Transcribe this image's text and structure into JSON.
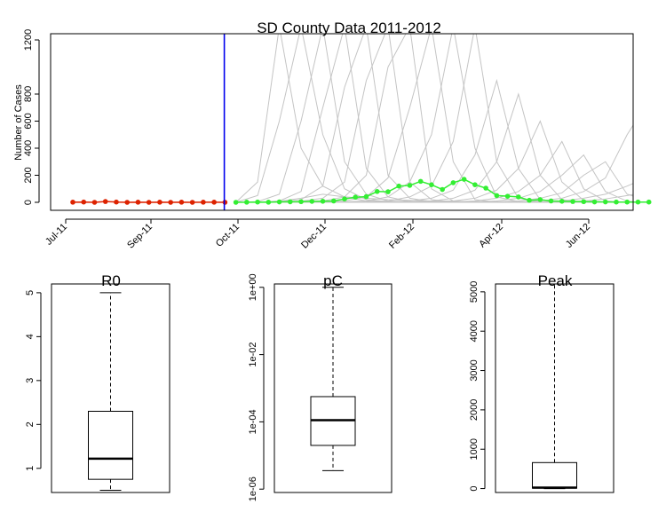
{
  "chart_data": [
    {
      "type": "line",
      "title": "SD County Data 2011-2012",
      "xlabel": "",
      "ylabel": "Number of Cases",
      "ylim": [
        -40,
        1240
      ],
      "y_ticks": [
        "0",
        "200",
        "400",
        "600",
        "800",
        "1200"
      ],
      "x_ticks": [
        "Jul-11",
        "Sep-11",
        "Oct-11",
        "Dec-11",
        "Feb-12",
        "Apr-12",
        "Jun-12"
      ],
      "vertical_line_at_week": 15,
      "colors": {
        "observed_fit": "#dd2200",
        "observed_forecast": "#33ee33",
        "simulations": "#c4c4c4",
        "cutoff_line": "#0000ee"
      },
      "series": [
        {
          "role": "observed-before-cutoff",
          "points_week": [
            0,
            1,
            2,
            3,
            4,
            5,
            6,
            7,
            8,
            9,
            10,
            11,
            12,
            13,
            14
          ],
          "values": [
            1,
            2,
            0,
            6,
            2,
            0,
            1,
            0,
            1,
            0,
            1,
            0,
            1,
            1,
            0
          ]
        },
        {
          "role": "observed-after-cutoff",
          "points_week": [
            15,
            16,
            17,
            18,
            19,
            20,
            21,
            22,
            23,
            24,
            25,
            26,
            27,
            28,
            29,
            30,
            31,
            32,
            33,
            34,
            35,
            36,
            37,
            38,
            39,
            40,
            41,
            42,
            43,
            44,
            45,
            46,
            47,
            48,
            49,
            50,
            51,
            52,
            53
          ],
          "values": [
            0,
            1,
            2,
            1,
            3,
            4,
            5,
            7,
            8,
            10,
            25,
            38,
            42,
            80,
            78,
            120,
            125,
            155,
            130,
            95,
            145,
            170,
            130,
            105,
            50,
            45,
            40,
            15,
            20,
            10,
            8,
            6,
            5,
            3,
            3,
            2,
            2,
            2,
            2
          ]
        }
      ],
      "simulations_week": [
        15,
        17,
        19,
        21,
        23,
        25,
        27,
        29,
        31,
        33,
        35,
        37,
        39,
        41,
        43,
        45,
        47,
        49,
        51,
        53
      ],
      "simulations": [
        [
          0,
          150,
          1300,
          400,
          120,
          40,
          10,
          5,
          2,
          1,
          0,
          0,
          0,
          0,
          0,
          0,
          0,
          0,
          0,
          0
        ],
        [
          0,
          50,
          600,
          1300,
          500,
          100,
          20,
          5,
          1,
          0,
          0,
          0,
          0,
          0,
          0,
          0,
          0,
          0,
          0,
          0
        ],
        [
          0,
          5,
          60,
          600,
          1300,
          300,
          60,
          10,
          2,
          0,
          0,
          0,
          0,
          0,
          0,
          0,
          0,
          0,
          0,
          0
        ],
        [
          0,
          2,
          10,
          80,
          700,
          1300,
          250,
          40,
          5,
          1,
          0,
          0,
          0,
          0,
          0,
          0,
          0,
          0,
          0,
          0
        ],
        [
          0,
          1,
          5,
          20,
          120,
          850,
          1300,
          200,
          30,
          5,
          1,
          0,
          0,
          0,
          0,
          0,
          0,
          0,
          0,
          0
        ],
        [
          0,
          1,
          2,
          8,
          30,
          150,
          900,
          1300,
          150,
          20,
          2,
          0,
          0,
          0,
          0,
          0,
          0,
          0,
          0,
          0
        ],
        [
          0,
          0,
          1,
          3,
          10,
          40,
          200,
          1000,
          1300,
          100,
          10,
          1,
          0,
          0,
          0,
          0,
          0,
          0,
          0,
          0
        ],
        [
          0,
          0,
          0,
          1,
          3,
          10,
          40,
          180,
          700,
          1300,
          300,
          20,
          2,
          0,
          0,
          0,
          0,
          0,
          0,
          0
        ],
        [
          0,
          0,
          0,
          0,
          1,
          3,
          10,
          40,
          150,
          500,
          1300,
          400,
          40,
          5,
          0,
          0,
          0,
          0,
          0,
          0
        ],
        [
          0,
          0,
          0,
          0,
          0,
          1,
          3,
          10,
          40,
          120,
          450,
          1300,
          300,
          30,
          3,
          0,
          0,
          0,
          0,
          0
        ],
        [
          0,
          0,
          0,
          0,
          0,
          0,
          1,
          3,
          10,
          30,
          90,
          350,
          900,
          250,
          20,
          2,
          0,
          0,
          0,
          0
        ],
        [
          0,
          0,
          0,
          0,
          0,
          0,
          0,
          1,
          3,
          10,
          30,
          90,
          300,
          800,
          200,
          20,
          2,
          0,
          0,
          0
        ],
        [
          0,
          0,
          0,
          0,
          0,
          0,
          0,
          0,
          1,
          3,
          10,
          30,
          90,
          250,
          600,
          150,
          15,
          1,
          0,
          0
        ],
        [
          0,
          0,
          0,
          0,
          0,
          0,
          0,
          0,
          0,
          1,
          3,
          10,
          30,
          80,
          200,
          450,
          100,
          10,
          0,
          0
        ],
        [
          0,
          0,
          0,
          0,
          0,
          0,
          0,
          0,
          0,
          0,
          1,
          3,
          10,
          30,
          80,
          200,
          350,
          80,
          8,
          0
        ],
        [
          0,
          0,
          0,
          0,
          0,
          0,
          0,
          0,
          0,
          0,
          0,
          1,
          3,
          10,
          30,
          70,
          200,
          300,
          60,
          10
        ],
        [
          0,
          0,
          0,
          0,
          0,
          0,
          0,
          0,
          0,
          0,
          0,
          0,
          1,
          3,
          10,
          30,
          80,
          180,
          500,
          750
        ],
        [
          0,
          0,
          0,
          0,
          0,
          0,
          0,
          0,
          0,
          0,
          0,
          0,
          0,
          1,
          3,
          10,
          30,
          60,
          120,
          190
        ],
        [
          0,
          0,
          0,
          0,
          0,
          0,
          0,
          0,
          0,
          0,
          0,
          0,
          0,
          0,
          1,
          3,
          10,
          25,
          50,
          80
        ],
        [
          0,
          2,
          8,
          30,
          60,
          40,
          30,
          20,
          15,
          10,
          8,
          5,
          3,
          2,
          1,
          1,
          0,
          0,
          0,
          0
        ]
      ]
    },
    {
      "type": "boxplot",
      "title": "R0",
      "scale": "linear",
      "ylim": [
        0.45,
        5.2
      ],
      "y_ticks": [
        "1",
        "2",
        "3",
        "4",
        "5"
      ],
      "y_tick_values": [
        1,
        2,
        3,
        4,
        5
      ],
      "box": {
        "min": 0.5,
        "q1": 0.75,
        "median": 1.22,
        "q3": 2.3,
        "max": 5.0
      }
    },
    {
      "type": "boxplot",
      "title": "pC",
      "scale": "log10",
      "ylim": [
        -6.1,
        0.1
      ],
      "y_ticks": [
        "1e-06",
        "1e-04",
        "1e-02",
        "1e+00"
      ],
      "y_tick_values": [
        -6,
        -4,
        -2,
        0
      ],
      "box": {
        "min": -5.45,
        "q1": -4.7,
        "median": -3.95,
        "q3": -3.25,
        "max": 0
      }
    },
    {
      "type": "boxplot",
      "title": "Peak",
      "scale": "linear",
      "ylim": [
        -100,
        5200
      ],
      "y_ticks": [
        "0",
        "1000",
        "2000",
        "3000",
        "4000",
        "5000"
      ],
      "y_tick_values": [
        0,
        1000,
        2000,
        3000,
        4000,
        5000
      ],
      "box": {
        "min": 0,
        "q1": 10,
        "median": 25,
        "q3": 660,
        "max": 5200
      }
    }
  ]
}
